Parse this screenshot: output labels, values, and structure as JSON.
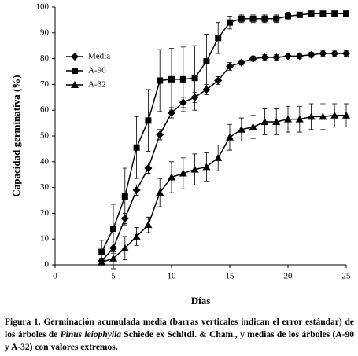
{
  "chart_data": {
    "type": "line",
    "xlabel": "Días",
    "ylabel": "Capacidad germinativa (%)",
    "x": [
      4,
      5,
      6,
      7,
      8,
      9,
      10,
      11,
      12,
      13,
      14,
      15,
      16,
      17,
      18,
      19,
      20,
      21,
      22,
      23,
      24,
      25
    ],
    "series": [
      {
        "name": "Media",
        "color": "#000000",
        "marker": "diamond",
        "values": [
          1.5,
          6.5,
          18,
          29,
          37.5,
          50.5,
          59,
          63,
          65,
          68,
          71.5,
          77,
          78.5,
          80,
          80.5,
          80.5,
          81,
          81,
          81.5,
          82,
          82,
          82
        ],
        "errors": [
          1,
          1.5,
          2,
          2,
          2,
          2,
          2,
          2,
          2,
          2,
          1.5,
          1.5,
          1,
          1,
          1,
          1,
          1,
          1,
          1,
          1,
          1,
          1
        ]
      },
      {
        "name": "A-90",
        "color": "#000000",
        "marker": "square",
        "values": [
          5,
          14,
          26.5,
          45.5,
          56,
          71.5,
          72,
          72,
          72.5,
          79,
          88,
          94,
          95.5,
          95.5,
          95.5,
          95.5,
          96.5,
          97,
          97.5,
          97.5,
          97.5,
          97.5
        ],
        "errors": [
          4.5,
          9.5,
          11,
          12,
          12,
          12,
          12,
          12.5,
          12.5,
          10.5,
          6,
          2.5,
          1.5,
          1.5,
          1.5,
          1.5,
          1.5,
          1,
          0.5,
          0.5,
          0.5,
          0.5
        ]
      },
      {
        "name": "A-32",
        "color": "#000000",
        "marker": "triangle",
        "values": [
          1,
          2.5,
          6.5,
          11,
          15.5,
          28,
          34,
          35.5,
          37,
          38,
          41.5,
          49.5,
          52.5,
          53.5,
          55.5,
          55.5,
          56.5,
          56.5,
          57.5,
          57.5,
          58,
          58
        ],
        "errors": [
          1.5,
          4,
          4.5,
          3.5,
          3,
          5.5,
          6,
          6,
          6,
          5.5,
          5,
          5,
          4.5,
          4.5,
          5,
          5,
          5,
          5,
          5,
          5,
          4.5,
          4.5
        ]
      }
    ],
    "xlim": [
      0,
      25
    ],
    "xticks": [
      0,
      5,
      10,
      15,
      20,
      25
    ],
    "ylim": [
      0,
      100
    ],
    "yticks": [
      0,
      10,
      20,
      30,
      40,
      50,
      60,
      70,
      80,
      90,
      100
    ],
    "legend": "upper left",
    "grid": false
  },
  "caption": {
    "label": "Figura 1.",
    "before": "Germinación acumulada media (barras verticales indican el error estándar) de los árboles de",
    "species": "Pinus leiophylla",
    "after": "Schiede ex Schltdl. & Cham., y medias de los árboles (A-90 y A-32) con valores extremos."
  }
}
